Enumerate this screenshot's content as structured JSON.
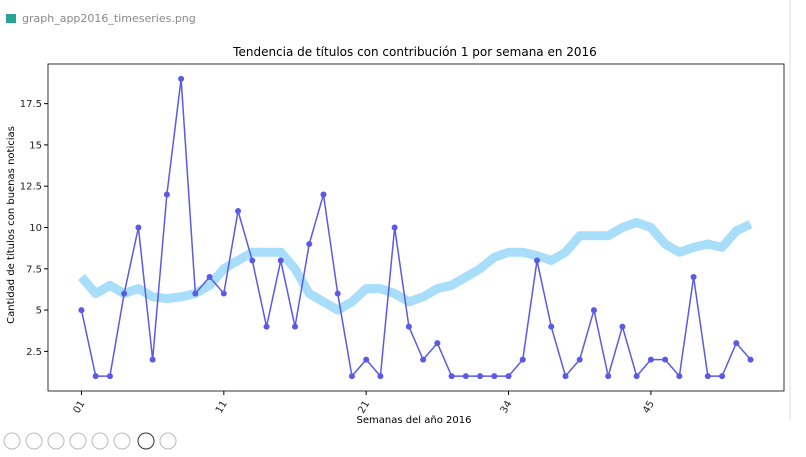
{
  "file_name": "graph_app2016_timeseries.png",
  "chart_data": {
    "type": "line",
    "title": "Tendencia de títulos con contribución 1 por semana en 2016",
    "x_label": "Semanas del año 2016",
    "y_label": "Cantidad de títulos con buenas noticias",
    "categories": [
      "01",
      null,
      null,
      null,
      null,
      null,
      null,
      null,
      null,
      null,
      "11",
      null,
      null,
      null,
      null,
      null,
      null,
      null,
      null,
      null,
      "21",
      null,
      null,
      null,
      null,
      null,
      null,
      null,
      null,
      null,
      "34",
      null,
      null,
      null,
      null,
      null,
      null,
      null,
      null,
      null,
      "45",
      null,
      null,
      null,
      null,
      null,
      null,
      null
    ],
    "series": [
      {
        "color": "#a3dcf9",
        "values": [
          7,
          6,
          6.5,
          6,
          6.3,
          5.8,
          5.7,
          5.8,
          6,
          6.5,
          7.5,
          8,
          8.5,
          8.5,
          8.5,
          7.5,
          6,
          5.5,
          5,
          5.5,
          6.3,
          6.3,
          6,
          5.5,
          5.8,
          6.3,
          6.5,
          7,
          7.5,
          8.2,
          8.5,
          8.5,
          8.3,
          8,
          8.5,
          9.5,
          9.5,
          9.5,
          10,
          10.3,
          10,
          9,
          8.5,
          8.8,
          9,
          8.8,
          9.8,
          10.2
        ]
      },
      {
        "color": "#5a5ae6",
        "values": [
          5,
          1,
          1,
          6,
          10,
          2,
          12,
          19,
          6,
          7,
          6,
          11,
          8,
          4,
          8,
          4,
          9,
          12,
          6,
          1,
          2,
          1,
          10,
          4,
          2,
          3,
          1,
          1,
          1,
          1,
          1,
          2,
          8,
          4,
          1,
          2,
          5,
          1,
          4,
          1,
          2,
          2,
          1,
          7,
          1,
          1,
          3,
          2
        ]
      }
    ],
    "ylim": [
      0.1,
      19.9
    ],
    "yticks": [
      2.5,
      5.0,
      7.5,
      10.0,
      12.5,
      15.0,
      17.5
    ]
  }
}
